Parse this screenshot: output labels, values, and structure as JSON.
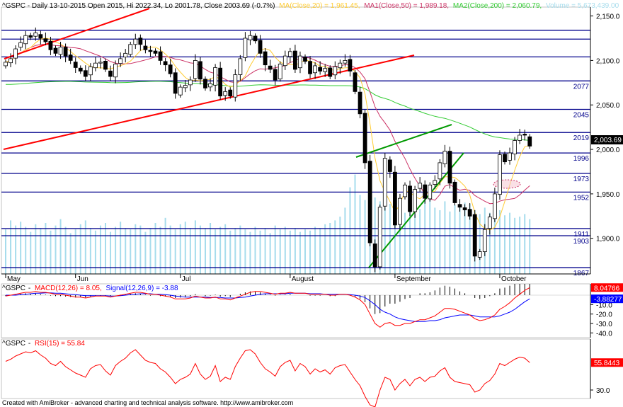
{
  "chart_data": [
    {
      "type": "candlestick",
      "legend": {
        "symbol": "^GSPC",
        "header": "^GSPC - Daily 13-10-2015 Open 2015, Hi 2022.34, Lo 2001.78, Close 2003.69 (-0.7%)",
        "ma": "MA(Close,20) = 1,961.45,",
        "ma1": "MA1(Close,50) = 1,989.18,",
        "ma2": "MA2(Close,200) = 2,060.79,",
        "volume": "Volume = 5,673,439.00"
      },
      "y_axis": {
        "range": [
          1860,
          2160
        ],
        "ticks": [
          "2,150.0",
          "2,100.0",
          "2,050.0",
          "2,000.0",
          "1,950.0",
          "1,900.0"
        ],
        "tick_values": [
          2150,
          2100,
          2050,
          2000,
          1950,
          1900
        ]
      },
      "x_axis": {
        "labels": [
          "May",
          "Jun",
          "Jul",
          "August",
          "September",
          "October"
        ]
      },
      "horizontal_levels": [
        {
          "value": 2134,
          "label": ""
        },
        {
          "value": 2124,
          "label": ""
        },
        {
          "value": 2104,
          "label": ""
        },
        {
          "value": 2077,
          "label": "2077"
        },
        {
          "value": 2045,
          "label": "2045"
        },
        {
          "value": 2019,
          "label": "2019"
        },
        {
          "value": 1996,
          "label": "1996"
        },
        {
          "value": 1973,
          "label": "1973"
        },
        {
          "value": 1952,
          "label": "1952"
        },
        {
          "value": 1911,
          "label": "1911"
        },
        {
          "value": 1903,
          "label": "1903"
        },
        {
          "value": 1867,
          "label": "1867"
        }
      ],
      "close_marker": "2,003.69",
      "colors": {
        "up": "#ffffff",
        "down": "#000000",
        "level": "#00008b",
        "trend_red": "#ff0000",
        "trend_green": "#00aa00",
        "ma20": "#ffcc33",
        "ma50": "#cc3366",
        "ma200": "#33cc33",
        "volume": "#a6dcec"
      },
      "closes": [
        2098,
        2102,
        2113,
        2120,
        2128,
        2126,
        2131,
        2125,
        2121,
        2112,
        2108,
        2115,
        2105,
        2100,
        2092,
        2088,
        2082,
        2093,
        2097,
        2098,
        2090,
        2082,
        2096,
        2102,
        2108,
        2118,
        2124,
        2118,
        2112,
        2110,
        2108,
        2100,
        2095,
        2085,
        2063,
        2070,
        2072,
        2078,
        2100,
        2079,
        2069,
        2074,
        2092,
        2060,
        2065,
        2060,
        2084,
        2102,
        2125,
        2128,
        2122,
        2108,
        2095,
        2090,
        2078,
        2096,
        2105,
        2110,
        2090,
        2105,
        2099,
        2085,
        2094,
        2088,
        2091,
        2082,
        2093,
        2097,
        2100,
        2088,
        2065,
        2040,
        1985,
        1895,
        1868,
        1935,
        1990,
        1975,
        1915,
        1945,
        1960,
        1930,
        1955,
        1962,
        1945,
        1960,
        1965,
        1985,
        1998,
        1962,
        1940,
        1935,
        1932,
        1925,
        1880,
        1885,
        1910,
        1924,
        1950,
        1994,
        1986,
        1996,
        2010,
        2016,
        2016,
        2003.69
      ],
      "volume": [
        0.35,
        0.42,
        0.38,
        0.41,
        0.37,
        0.33,
        0.39,
        0.36,
        0.4,
        0.34,
        0.38,
        0.43,
        0.37,
        0.32,
        0.35,
        0.39,
        0.42,
        0.36,
        0.34,
        0.38,
        0.4,
        0.33,
        0.37,
        0.41,
        0.36,
        0.35,
        0.39,
        0.38,
        0.33,
        0.36,
        0.4,
        0.37,
        0.44,
        0.38,
        0.35,
        0.39,
        0.41,
        0.36,
        0.42,
        0.38,
        0.36,
        0.4,
        0.35,
        0.37,
        0.39,
        0.34,
        0.36,
        0.38,
        0.35,
        0.33,
        0.37,
        0.34,
        0.36,
        0.32,
        0.38,
        0.35,
        0.37,
        0.34,
        0.36,
        0.33,
        0.35,
        0.34,
        0.37,
        0.36,
        0.39,
        0.4,
        0.42,
        0.45,
        0.52,
        0.68,
        0.78,
        0.62,
        0.58,
        0.55,
        0.6,
        0.57,
        0.52,
        0.55,
        0.5,
        0.53,
        0.48,
        0.55,
        0.47,
        0.51,
        0.58,
        0.6,
        0.52,
        0.5,
        0.57,
        0.49,
        0.54,
        0.52,
        0.56,
        0.55,
        0.5,
        0.47,
        0.52,
        0.48,
        0.53,
        0.5,
        0.46,
        0.48,
        0.44,
        0.45,
        0.47,
        0.43
      ]
    },
    {
      "type": "line",
      "legend": {
        "symbol": "^GSPC",
        "macd": "MACD(12,26) = 8.05,",
        "signal": "Signal(12,26,9) = -3.88"
      },
      "y_axis": {
        "range": [
          -45,
          12
        ],
        "ticks": [
          "-10.0",
          "-20.0",
          "-30.0",
          "-40.0"
        ],
        "tick_values": [
          -10,
          -20,
          -30,
          -40
        ]
      },
      "last_values": [
        "8.04766",
        "-3.88277"
      ],
      "series": [
        {
          "name": "MACD(12,26)",
          "color": "#ff0000",
          "values": [
            -1,
            0,
            1,
            2,
            3,
            3,
            4,
            3,
            3,
            2,
            1,
            1,
            0,
            -1,
            -2,
            -2,
            -3,
            -2,
            -1,
            -1,
            -1,
            -2,
            -1,
            0,
            1,
            2,
            3,
            3,
            2,
            1,
            1,
            0,
            -1,
            -2,
            -4,
            -4,
            -4,
            -3,
            -1,
            -2,
            -3,
            -3,
            -2,
            -4,
            -4,
            -5,
            -3,
            -1,
            1,
            3,
            4,
            4,
            3,
            2,
            1,
            2,
            2,
            3,
            2,
            2,
            2,
            1,
            1,
            1,
            1,
            0,
            0,
            1,
            1,
            0,
            -2,
            -5,
            -10,
            -20,
            -30,
            -34,
            -30,
            -29,
            -32,
            -32,
            -30,
            -30,
            -28,
            -26,
            -26,
            -24,
            -22,
            -18,
            -14,
            -14,
            -15,
            -17,
            -19,
            -21,
            -25,
            -27,
            -26,
            -24,
            -21,
            -15,
            -12,
            -8,
            -3,
            1,
            5,
            8.05
          ]
        },
        {
          "name": "Signal(12,26,9)",
          "color": "#0000ff",
          "values": [
            0,
            0,
            0,
            0.5,
            1,
            1.5,
            2,
            2,
            2.5,
            2.5,
            2,
            2,
            1.5,
            1,
            0.5,
            0,
            -0.5,
            -0.5,
            -0.5,
            -0.5,
            -0.5,
            -1,
            -1,
            -0.5,
            0,
            0.5,
            1,
            1.5,
            1.5,
            1.5,
            1,
            1,
            0.5,
            0,
            -1,
            -1.5,
            -2,
            -2,
            -2,
            -2,
            -2,
            -2.5,
            -2.5,
            -2.5,
            -3,
            -3,
            -3,
            -2.5,
            -2,
            -1,
            0,
            1,
            1.5,
            1.5,
            1.5,
            1.5,
            1.5,
            2,
            2,
            2,
            2,
            1.5,
            1.5,
            1.5,
            1,
            1,
            1,
            1,
            1,
            0.5,
            0,
            -1,
            -2.5,
            -6,
            -10,
            -15,
            -18,
            -20,
            -23,
            -25,
            -26,
            -27,
            -28,
            -28,
            -28,
            -27,
            -27,
            -26,
            -24,
            -23,
            -22,
            -21,
            -21,
            -21,
            -22,
            -23,
            -23,
            -23,
            -23,
            -22,
            -20,
            -18,
            -15,
            -11,
            -7,
            -3.88
          ]
        }
      ]
    },
    {
      "type": "line",
      "legend": {
        "symbol": "^GSPC",
        "rsi": "RSI(15) = 55.84"
      },
      "y_axis": {
        "range": [
          22,
          78
        ],
        "ticks": [
          "30.0"
        ],
        "tick_values": [
          30
        ]
      },
      "last_values": [
        "55.8443"
      ],
      "series": [
        {
          "name": "RSI(15)",
          "color": "#ff0000",
          "values": [
            57,
            59,
            62,
            64,
            66,
            65,
            67,
            63,
            60,
            55,
            53,
            57,
            52,
            49,
            46,
            44,
            42,
            50,
            53,
            54,
            48,
            44,
            53,
            57,
            60,
            65,
            68,
            63,
            58,
            56,
            55,
            50,
            47,
            42,
            36,
            40,
            42,
            45,
            55,
            45,
            40,
            43,
            53,
            38,
            42,
            40,
            52,
            60,
            67,
            68,
            64,
            56,
            50,
            47,
            43,
            52,
            56,
            58,
            48,
            55,
            52,
            45,
            50,
            47,
            49,
            45,
            51,
            53,
            54,
            47,
            40,
            34,
            24,
            16,
            14,
            30,
            42,
            40,
            30,
            36,
            40,
            34,
            40,
            42,
            38,
            42,
            43,
            48,
            51,
            42,
            38,
            37,
            36,
            35,
            28,
            30,
            36,
            39,
            45,
            55,
            53,
            56,
            59,
            61,
            60,
            55.84
          ]
        }
      ]
    }
  ],
  "footer": "Created with AmiBroker - advanced charting and technical analysis software. http://www.amibroker.com"
}
